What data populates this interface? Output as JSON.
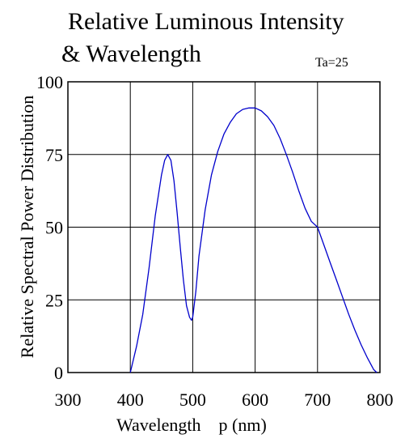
{
  "chart_data": {
    "type": "line",
    "title_line1": "Relative Luminous Intensity",
    "title_line2": "& Wavelength",
    "annotation": "Ta=25",
    "xlabel": "Wavelength    p (nm)",
    "ylabel": "Relative Spectral Power Distribution",
    "xlim": [
      300,
      800
    ],
    "ylim": [
      0,
      100
    ],
    "xticks": [
      300,
      400,
      500,
      600,
      700,
      800
    ],
    "yticks": [
      0,
      25,
      50,
      75,
      100
    ],
    "grid": true,
    "line_color": "#0000cc",
    "series": [
      {
        "x": [
          400,
          410,
          420,
          430,
          440,
          450,
          455,
          460,
          465,
          470,
          475,
          480,
          485,
          490,
          495,
          498,
          500,
          505,
          510,
          520,
          530,
          540,
          550,
          560,
          570,
          580,
          590,
          600,
          610,
          620,
          630,
          640,
          650,
          660,
          670,
          680,
          690,
          700,
          710,
          720,
          730,
          740,
          750,
          760,
          770,
          780,
          790,
          795
        ],
        "y": [
          0,
          9,
          20,
          36,
          54,
          68,
          73,
          75,
          73,
          66,
          55,
          43,
          32,
          23,
          19,
          18,
          19,
          28,
          40,
          56,
          68,
          76,
          82,
          86,
          89,
          90.5,
          91,
          91,
          90,
          88,
          85,
          80.5,
          75,
          69,
          62.5,
          56.5,
          52,
          50,
          44,
          38,
          32,
          26,
          20,
          14.5,
          9.5,
          5,
          1,
          0
        ]
      }
    ]
  }
}
